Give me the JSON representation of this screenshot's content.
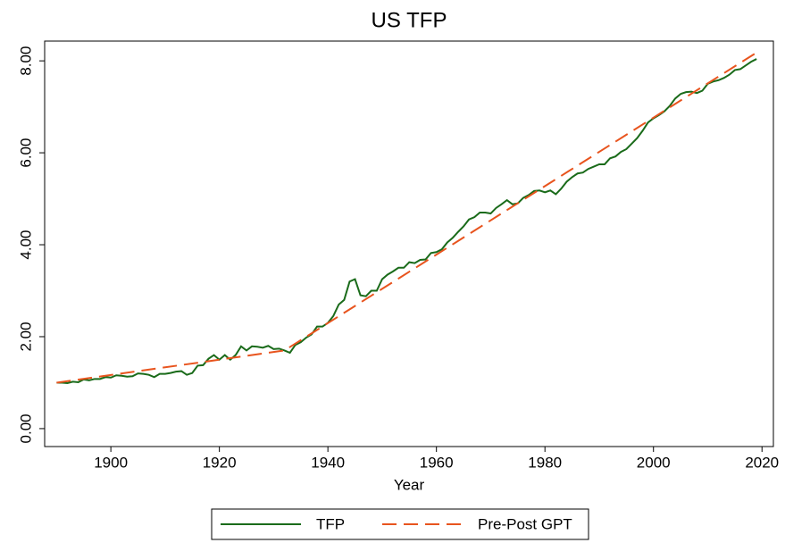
{
  "chart_data": {
    "type": "line",
    "title": "US TFP",
    "x_label": "Year",
    "xlim": [
      1887.8,
      2022.1
    ],
    "xticks": [
      1900,
      1920,
      1940,
      1960,
      1980,
      2000,
      2020
    ],
    "ylim": [
      -0.39,
      8.43
    ],
    "yticks": [
      {
        "value": 0,
        "label": "0.00"
      },
      {
        "value": 2,
        "label": "2.00"
      },
      {
        "value": 4,
        "label": "4.00"
      },
      {
        "value": 6,
        "label": "6.00"
      },
      {
        "value": 8,
        "label": "8.00"
      }
    ],
    "series": [
      {
        "name": "TFP",
        "color": "#1a6b1a",
        "dash": "none",
        "x": [
          1890,
          1891,
          1892,
          1893,
          1894,
          1895,
          1896,
          1897,
          1898,
          1899,
          1900,
          1901,
          1902,
          1903,
          1904,
          1905,
          1906,
          1907,
          1908,
          1909,
          1910,
          1911,
          1912,
          1913,
          1914,
          1915,
          1916,
          1917,
          1918,
          1919,
          1920,
          1921,
          1922,
          1923,
          1924,
          1925,
          1926,
          1927,
          1928,
          1929,
          1930,
          1931,
          1932,
          1933,
          1934,
          1935,
          1936,
          1937,
          1938,
          1939,
          1940,
          1941,
          1942,
          1943,
          1944,
          1945,
          1946,
          1947,
          1948,
          1949,
          1950,
          1951,
          1952,
          1953,
          1954,
          1955,
          1956,
          1957,
          1958,
          1959,
          1960,
          1961,
          1962,
          1963,
          1964,
          1965,
          1966,
          1967,
          1968,
          1969,
          1970,
          1971,
          1972,
          1973,
          1974,
          1975,
          1976,
          1977,
          1978,
          1979,
          1980,
          1981,
          1982,
          1983,
          1984,
          1985,
          1986,
          1987,
          1988,
          1989,
          1990,
          1991,
          1992,
          1993,
          1994,
          1995,
          1996,
          1997,
          1998,
          1999,
          2000,
          2001,
          2002,
          2003,
          2004,
          2005,
          2006,
          2007,
          2008,
          2009,
          2010,
          2011,
          2012,
          2013,
          2014,
          2015,
          2016,
          2017,
          2018,
          2019
        ],
        "values": [
          1.0,
          1.0,
          0.99,
          1.02,
          1.01,
          1.07,
          1.05,
          1.08,
          1.08,
          1.12,
          1.11,
          1.16,
          1.15,
          1.13,
          1.14,
          1.2,
          1.19,
          1.17,
          1.12,
          1.19,
          1.19,
          1.21,
          1.24,
          1.25,
          1.17,
          1.21,
          1.37,
          1.38,
          1.52,
          1.6,
          1.5,
          1.6,
          1.5,
          1.6,
          1.79,
          1.7,
          1.79,
          1.78,
          1.76,
          1.8,
          1.73,
          1.74,
          1.7,
          1.65,
          1.82,
          1.88,
          1.98,
          2.05,
          2.22,
          2.22,
          2.3,
          2.45,
          2.7,
          2.8,
          3.2,
          3.25,
          2.9,
          2.88,
          3.0,
          3.0,
          3.25,
          3.35,
          3.42,
          3.5,
          3.5,
          3.62,
          3.6,
          3.67,
          3.68,
          3.82,
          3.84,
          3.9,
          4.05,
          4.15,
          4.28,
          4.4,
          4.55,
          4.6,
          4.7,
          4.7,
          4.68,
          4.8,
          4.88,
          4.97,
          4.88,
          4.9,
          5.02,
          5.08,
          5.17,
          5.18,
          5.14,
          5.18,
          5.1,
          5.22,
          5.37,
          5.47,
          5.55,
          5.57,
          5.65,
          5.7,
          5.75,
          5.75,
          5.88,
          5.92,
          6.02,
          6.08,
          6.2,
          6.32,
          6.48,
          6.66,
          6.75,
          6.82,
          6.9,
          7.02,
          7.18,
          7.28,
          7.32,
          7.33,
          7.3,
          7.35,
          7.5,
          7.55,
          7.58,
          7.63,
          7.7,
          7.8,
          7.82,
          7.9,
          7.98,
          8.04
        ]
      },
      {
        "name": "Pre-Post GPT",
        "color": "#e8541e",
        "dash": "dashed",
        "x": [
          1890,
          1932,
          2019
        ],
        "values": [
          1.0,
          1.7,
          8.18
        ]
      }
    ]
  }
}
